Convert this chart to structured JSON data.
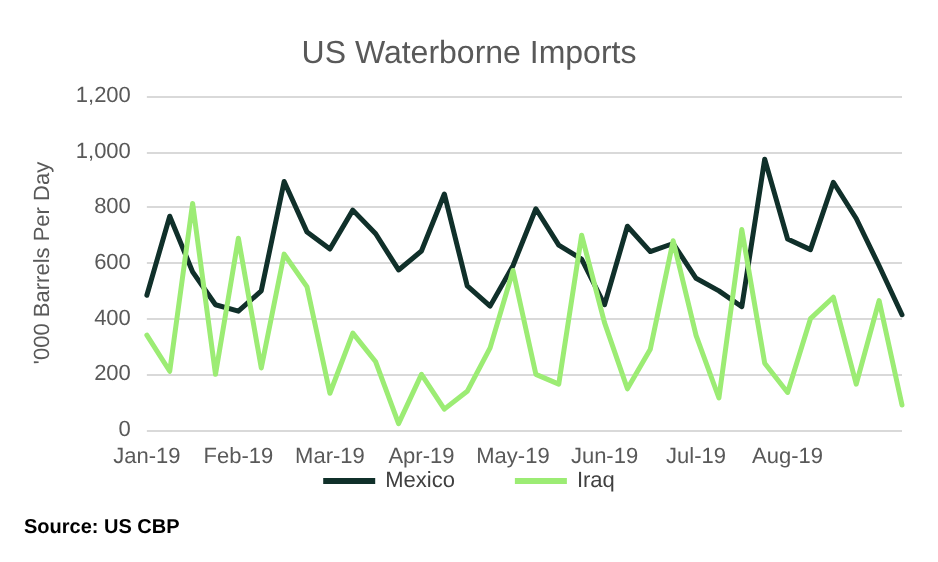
{
  "chart_data": {
    "type": "line",
    "title": "US Waterborne Imports",
    "ylabel": "'000 Barrels Per Day",
    "annotations": [
      "Source: US CBP"
    ],
    "categories": [
      "Jan-19",
      null,
      null,
      null,
      "Feb-19",
      null,
      null,
      null,
      "Mar-19",
      null,
      null,
      null,
      "Apr-19",
      null,
      null,
      null,
      "May-19",
      null,
      null,
      null,
      "Jun-19",
      null,
      null,
      null,
      "Jul-19",
      null,
      null,
      null,
      "Aug-19",
      null,
      null,
      null,
      null,
      null
    ],
    "series": [
      {
        "name": "Mexico",
        "color": "#10302a",
        "values": [
          484,
          768,
          568,
          450,
          427,
          500,
          893,
          711,
          650,
          790,
          705,
          575,
          643,
          848,
          518,
          445,
          590,
          795,
          664,
          614,
          450,
          732,
          641,
          670,
          545,
          500,
          443,
          973,
          686,
          648,
          890,
          760,
          590,
          414
        ]
      },
      {
        "name": "Iraq",
        "color": "#9cec74",
        "values": [
          341,
          211,
          814,
          200,
          689,
          223,
          632,
          514,
          132,
          348,
          245,
          23,
          200,
          75,
          139,
          295,
          573,
          200,
          165,
          700,
          386,
          148,
          290,
          680,
          340,
          115,
          720,
          240,
          135,
          400,
          477,
          165,
          465,
          90
        ]
      }
    ],
    "ylim": [
      0,
      1200
    ],
    "yticks": [
      0,
      200,
      400,
      600,
      800,
      {
        "value": 1000,
        "label": "1,000"
      },
      {
        "value": 1200,
        "label": "1,200"
      }
    ],
    "grid": "y",
    "legend": "bottom",
    "marker": "none",
    "line_style": "solid"
  }
}
